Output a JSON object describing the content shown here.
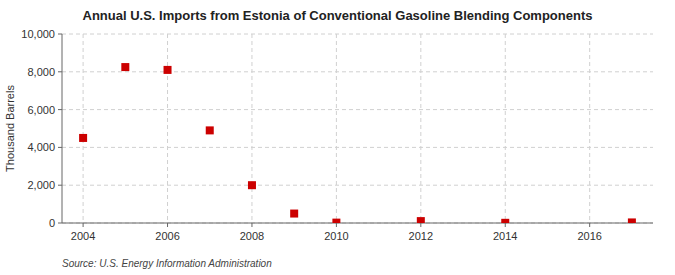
{
  "chart_data": {
    "type": "scatter",
    "title": "Annual U.S. Imports from Estonia of Conventional Gasoline Blending Components",
    "ylabel": "Thousand Barrels",
    "source": "Source: U.S. Energy Information Administration",
    "x": [
      2004,
      2005,
      2006,
      2007,
      2008,
      2009,
      2010,
      2012,
      2014,
      2017
    ],
    "values": [
      4500,
      8250,
      8100,
      4900,
      2000,
      500,
      20,
      100,
      10,
      30
    ],
    "color": "#cc0000",
    "marker": "square",
    "xlim": [
      2003.5,
      2017.5
    ],
    "xticks": [
      2004,
      2006,
      2008,
      2010,
      2012,
      2014,
      2016
    ],
    "ylim": [
      0,
      10000
    ],
    "yticks": [
      0,
      {
        "value": 2000,
        "label": "2,000"
      },
      {
        "value": 4000,
        "label": "4,000"
      },
      {
        "value": 6000,
        "label": "6,000"
      },
      {
        "value": 8000,
        "label": "8,000"
      },
      {
        "value": 10000,
        "label": "10,000"
      }
    ],
    "grid": true
  }
}
